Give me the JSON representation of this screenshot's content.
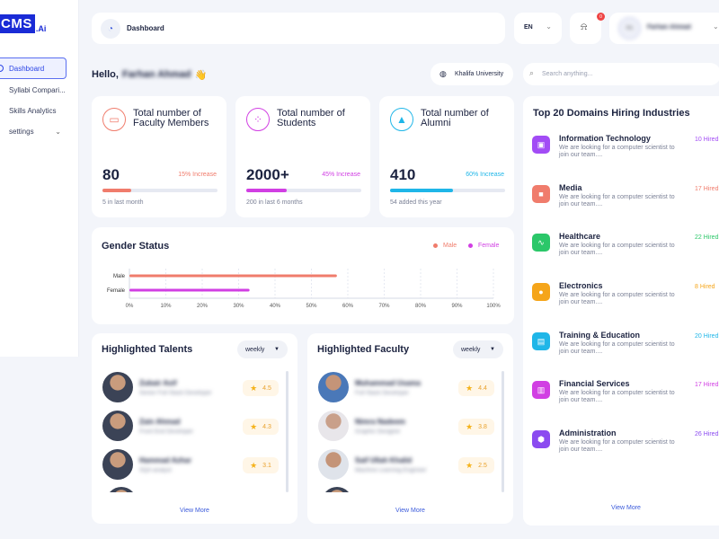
{
  "sidebar": {
    "logo_main": "CMS",
    "logo_ai": ".Ai",
    "items": [
      {
        "label": "Dashboard",
        "active": true
      },
      {
        "label": "Syllabi Compari..."
      },
      {
        "label": "Skills Analytics"
      },
      {
        "label": "settings"
      }
    ]
  },
  "topbar": {
    "title": "Dashboard",
    "language": "EN",
    "notification_count": "0",
    "user_initials": "FA",
    "user_name": "Farhan Ahmad"
  },
  "greeting": {
    "hello": "Hello,",
    "name": "Farhan Ahmad",
    "emoji": "👋"
  },
  "university": "Khalifa University",
  "search": {
    "placeholder": "Search anything..."
  },
  "stats": [
    {
      "title": "Total number of Faculty Members",
      "value": "80",
      "increase": "15% Increase",
      "sub": "5 in last month",
      "color": "#f07c6c",
      "progress": 0.25
    },
    {
      "title": "Total number of Students",
      "value": "2000+",
      "increase": "45% Increase",
      "sub": "200 in last 6 months",
      "color": "#d13fe3",
      "progress": 0.35
    },
    {
      "title": "Total number of Alumni",
      "value": "410",
      "increase": "60% Increase",
      "sub": "54 added this year",
      "color": "#1fb6e8",
      "progress": 0.55
    }
  ],
  "gender": {
    "title": "Gender Status",
    "legend": [
      {
        "label": "Male",
        "color": "#f07c6c"
      },
      {
        "label": "Female",
        "color": "#d13fe3"
      }
    ]
  },
  "chart_data": {
    "type": "bar",
    "orientation": "horizontal",
    "categories": [
      "Male",
      "Female"
    ],
    "values": [
      57,
      33
    ],
    "colors": [
      "#f07c6c",
      "#d13fe3"
    ],
    "x_ticks": [
      "0%",
      "10%",
      "20%",
      "30%",
      "40%",
      "50%",
      "60%",
      "70%",
      "80%",
      "90%",
      "100%"
    ],
    "xlim": [
      0,
      100
    ],
    "legend": "top-right",
    "grid": true
  },
  "talents": {
    "title": "Highlighted Talents",
    "filter": "weekly",
    "view_more": "View More",
    "items": [
      {
        "name": "Zubair Asif",
        "role": "Senior Full Stack Developer",
        "rating": "4.5"
      },
      {
        "name": "Zain Ahmad",
        "role": "Front End Developer",
        "rating": "4.3"
      },
      {
        "name": "Hammad Azhar",
        "role": "SQA analyst",
        "rating": "3.1"
      }
    ]
  },
  "faculty": {
    "title": "Highlighted Faculty",
    "filter": "weekly",
    "view_more": "View More",
    "items": [
      {
        "name": "Muhammad Usama",
        "role": "Full Stack Developer",
        "rating": "4.4"
      },
      {
        "name": "Nimra Nadeem",
        "role": "Graphic Designer",
        "rating": "3.8"
      },
      {
        "name": "Saif Ullah Khalid",
        "role": "Machine Learning Engineer",
        "rating": "2.5"
      }
    ]
  },
  "domains": {
    "title": "Top 20 Domains Hiring Industries",
    "view_more": "View More",
    "items": [
      {
        "name": "Information Technology",
        "desc": "We are looking for a computer scientist to join our team....",
        "hired": "10 Hired",
        "color": "#a24cf5",
        "icon": "devices-icon",
        "glyph": "▣"
      },
      {
        "name": "Media",
        "desc": "We are looking for a computer scientist to join our team....",
        "hired": "17 Hired",
        "color": "#f07c6c",
        "icon": "camera-icon",
        "glyph": "■"
      },
      {
        "name": "Healthcare",
        "desc": "We are looking for a computer scientist to join our team....",
        "hired": "22 Hired",
        "color": "#2bc769",
        "icon": "pulse-icon",
        "glyph": "∿"
      },
      {
        "name": "Electronics",
        "desc": "We are looking for a computer scientist to join our team....",
        "hired": "8 Hired",
        "color": "#f5a51a",
        "icon": "bulb-icon",
        "glyph": "●"
      },
      {
        "name": "Training & Education",
        "desc": "We are looking for a computer scientist to join our team....",
        "hired": "20 Hired",
        "color": "#1fb6e8",
        "icon": "board-icon",
        "glyph": "▤"
      },
      {
        "name": "Financial Services",
        "desc": "We are looking for a computer scientist to join our team....",
        "hired": "17 Hired",
        "color": "#d13fe3",
        "icon": "chart-icon",
        "glyph": "▥"
      },
      {
        "name": "Administration",
        "desc": "We are looking for a computer scientist to join our team....",
        "hired": "26 Hired",
        "color": "#8b4bf0",
        "icon": "admin-icon",
        "glyph": "⬢"
      }
    ]
  }
}
